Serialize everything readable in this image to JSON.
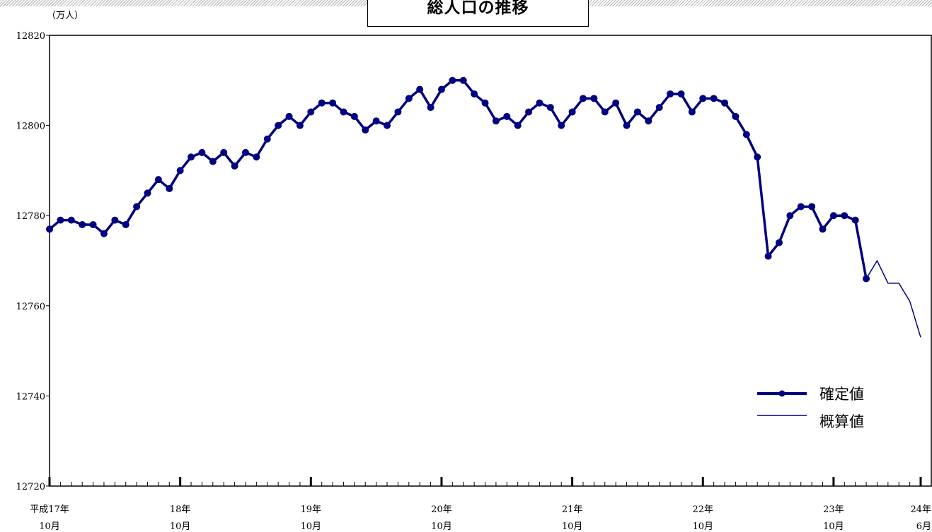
{
  "chart_data": {
    "type": "line",
    "title": "総人口の推移",
    "yunit": "（万人）",
    "ylim": [
      12720,
      12820
    ],
    "yticks": [
      12720,
      12740,
      12760,
      12780,
      12800,
      12820
    ],
    "x_range": [
      0,
      80
    ],
    "x_major_ticks": [
      {
        "x": 0,
        "year": "平成17年",
        "month": "10月"
      },
      {
        "x": 12,
        "year": "18年",
        "month": "10月"
      },
      {
        "x": 24,
        "year": "19年",
        "month": "10月"
      },
      {
        "x": 36,
        "year": "20年",
        "month": "10月"
      },
      {
        "x": 48,
        "year": "21年",
        "month": "10月"
      },
      {
        "x": 60,
        "year": "22年",
        "month": "10月"
      },
      {
        "x": 72,
        "year": "23年",
        "month": "10月"
      },
      {
        "x": 80,
        "year": "24年",
        "month": "6月"
      }
    ],
    "series": [
      {
        "name": "確定値",
        "color": "#000080",
        "markers": true,
        "x_start": 0,
        "values": [
          12777,
          12779,
          12779,
          12778,
          12778,
          12776,
          12779,
          12778,
          12782,
          12785,
          12788,
          12786,
          12790,
          12793,
          12794,
          12792,
          12794,
          12791,
          12794,
          12793,
          12797,
          12800,
          12802,
          12800,
          12803,
          12805,
          12805,
          12803,
          12802,
          12799,
          12801,
          12800,
          12803,
          12806,
          12808,
          12804,
          12808,
          12810,
          12810,
          12807,
          12805,
          12801,
          12802,
          12800,
          12803,
          12805,
          12804,
          12800,
          12803,
          12806,
          12806,
          12803,
          12805,
          12800,
          12803,
          12801,
          12804,
          12807,
          12807,
          12803,
          12806,
          12806,
          12805,
          12802,
          12798,
          12793,
          12771,
          12774,
          12780,
          12782,
          12782,
          12777,
          12780,
          12780,
          12779,
          12766
        ]
      },
      {
        "name": "概算値",
        "color": "#000080",
        "markers": false,
        "x_start": 75,
        "values": [
          12766,
          12770,
          12765,
          12765,
          12761,
          12753
        ]
      }
    ],
    "legend_position": "bottom-right",
    "grid": false
  }
}
